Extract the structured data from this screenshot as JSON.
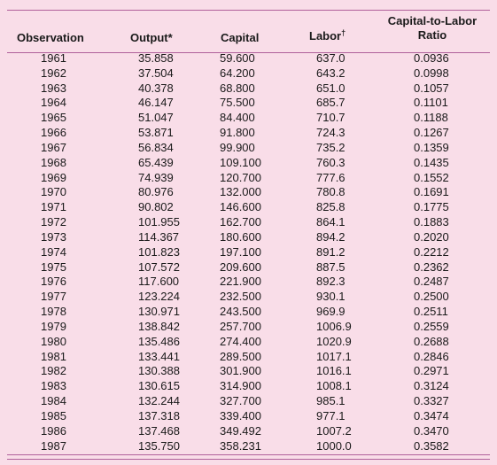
{
  "table": {
    "headers": {
      "observation": "Observation",
      "output": "Output*",
      "capital": "Capital",
      "labor": "Labor",
      "labor_mark": "†",
      "ratio_line1": "Capital-to-Labor",
      "ratio_line2": "Ratio"
    },
    "rows": [
      {
        "year": "1961",
        "output": "35.858",
        "capital": "59.600",
        "labor": "637.0",
        "ratio": "0.0936"
      },
      {
        "year": "1962",
        "output": "37.504",
        "capital": "64.200",
        "labor": "643.2",
        "ratio": "0.0998"
      },
      {
        "year": "1963",
        "output": "40.378",
        "capital": "68.800",
        "labor": "651.0",
        "ratio": "0.1057"
      },
      {
        "year": "1964",
        "output": "46.147",
        "capital": "75.500",
        "labor": "685.7",
        "ratio": "0.1101"
      },
      {
        "year": "1965",
        "output": "51.047",
        "capital": "84.400",
        "labor": "710.7",
        "ratio": "0.1188"
      },
      {
        "year": "1966",
        "output": "53.871",
        "capital": "91.800",
        "labor": "724.3",
        "ratio": "0.1267"
      },
      {
        "year": "1967",
        "output": "56.834",
        "capital": "99.900",
        "labor": "735.2",
        "ratio": "0.1359"
      },
      {
        "year": "1968",
        "output": "65.439",
        "capital": "109.100",
        "labor": "760.3",
        "ratio": "0.1435"
      },
      {
        "year": "1969",
        "output": "74.939",
        "capital": "120.700",
        "labor": "777.6",
        "ratio": "0.1552"
      },
      {
        "year": "1970",
        "output": "80.976",
        "capital": "132.000",
        "labor": "780.8",
        "ratio": "0.1691"
      },
      {
        "year": "1971",
        "output": "90.802",
        "capital": "146.600",
        "labor": "825.8",
        "ratio": "0.1775"
      },
      {
        "year": "1972",
        "output": "101.955",
        "capital": "162.700",
        "labor": "864.1",
        "ratio": "0.1883"
      },
      {
        "year": "1973",
        "output": "114.367",
        "capital": "180.600",
        "labor": "894.2",
        "ratio": "0.2020"
      },
      {
        "year": "1974",
        "output": "101.823",
        "capital": "197.100",
        "labor": "891.2",
        "ratio": "0.2212"
      },
      {
        "year": "1975",
        "output": "107.572",
        "capital": "209.600",
        "labor": "887.5",
        "ratio": "0.2362"
      },
      {
        "year": "1976",
        "output": "117.600",
        "capital": "221.900",
        "labor": "892.3",
        "ratio": "0.2487"
      },
      {
        "year": "1977",
        "output": "123.224",
        "capital": "232.500",
        "labor": "930.1",
        "ratio": "0.2500"
      },
      {
        "year": "1978",
        "output": "130.971",
        "capital": "243.500",
        "labor": "969.9",
        "ratio": "0.2511"
      },
      {
        "year": "1979",
        "output": "138.842",
        "capital": "257.700",
        "labor": "1006.9",
        "ratio": "0.2559"
      },
      {
        "year": "1980",
        "output": "135.486",
        "capital": "274.400",
        "labor": "1020.9",
        "ratio": "0.2688"
      },
      {
        "year": "1981",
        "output": "133.441",
        "capital": "289.500",
        "labor": "1017.1",
        "ratio": "0.2846"
      },
      {
        "year": "1982",
        "output": "130.388",
        "capital": "301.900",
        "labor": "1016.1",
        "ratio": "0.2971"
      },
      {
        "year": "1983",
        "output": "130.615",
        "capital": "314.900",
        "labor": "1008.1",
        "ratio": "0.3124"
      },
      {
        "year": "1984",
        "output": "132.244",
        "capital": "327.700",
        "labor": "985.1",
        "ratio": "0.3327"
      },
      {
        "year": "1985",
        "output": "137.318",
        "capital": "339.400",
        "labor": "977.1",
        "ratio": "0.3474"
      },
      {
        "year": "1986",
        "output": "137.468",
        "capital": "349.492",
        "labor": "1007.2",
        "ratio": "0.3470"
      },
      {
        "year": "1987",
        "output": "135.750",
        "capital": "358.231",
        "labor": "1000.0",
        "ratio": "0.3582"
      }
    ]
  }
}
